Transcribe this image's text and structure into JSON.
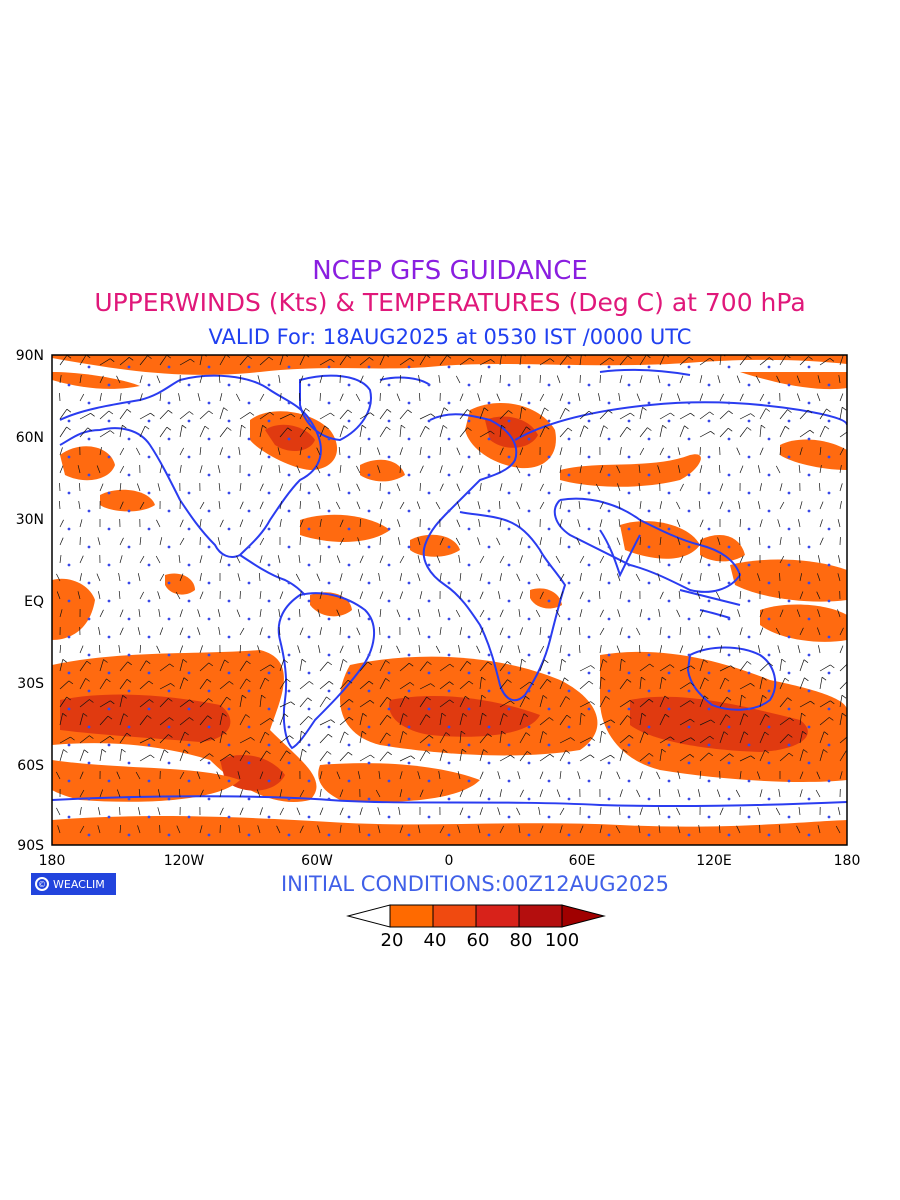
{
  "header": {
    "title": "NCEP GFS GUIDANCE",
    "subtitle": "UPPERWINDS (Kts) & TEMPERATURES (Deg C) at 700 hPa",
    "valid": "VALID For: 18AUG2025 at 0530 IST /0000 UTC"
  },
  "axes": {
    "lat_labels": [
      "90N",
      "60N",
      "30N",
      "EQ",
      "30S",
      "60S",
      "90S"
    ],
    "lon_labels": [
      "180",
      "120W",
      "60W",
      "0",
      "60E",
      "120E",
      "180"
    ]
  },
  "footer": {
    "logo_text": "WEACLIM",
    "initial": "INITIAL  CONDITIONS:00Z12AUG2025"
  },
  "legend": {
    "labels": [
      "20",
      "40",
      "60",
      "80",
      "100"
    ],
    "colors": [
      "#ffffff",
      "#ff6a00",
      "#f04a10",
      "#d8221a",
      "#b40e0e",
      "#a00000"
    ]
  },
  "colors": {
    "coast": "#2a3cf0",
    "fill": "#ff6a10",
    "fill_dark": "#e03a10"
  }
}
